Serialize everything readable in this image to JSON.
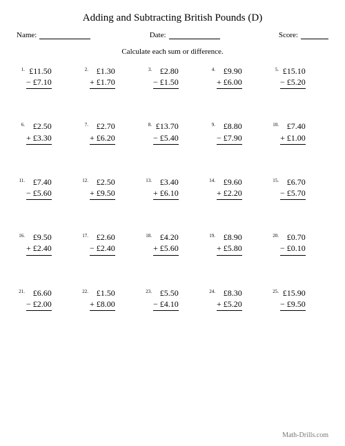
{
  "background_color": "#ffffff",
  "text_color": "#000000",
  "title": "Adding and Subtracting British Pounds (D)",
  "title_fontsize": 15,
  "header": {
    "name_label": "Name:",
    "date_label": "Date:",
    "score_label": "Score:",
    "fontsize": 11
  },
  "instruction": "Calculate each sum or difference.",
  "instruction_fontsize": 11,
  "grid": {
    "cols": 5,
    "rows": 5,
    "problem_fontsize": 12,
    "number_fontsize": 7
  },
  "problems": [
    {
      "n": "1.",
      "top": "£11.50",
      "op": "−",
      "bot": "£7.10"
    },
    {
      "n": "2.",
      "top": "£1.30",
      "op": "+",
      "bot": "£1.70"
    },
    {
      "n": "3.",
      "top": "£2.80",
      "op": "−",
      "bot": "£1.50"
    },
    {
      "n": "4.",
      "top": "£9.90",
      "op": "+",
      "bot": "£6.00"
    },
    {
      "n": "5.",
      "top": "£15.10",
      "op": "−",
      "bot": "£5.20"
    },
    {
      "n": "6.",
      "top": "£2.50",
      "op": "+",
      "bot": "£3.30"
    },
    {
      "n": "7.",
      "top": "£2.70",
      "op": "+",
      "bot": "£6.20"
    },
    {
      "n": "8.",
      "top": "£13.70",
      "op": "−",
      "bot": "£5.40"
    },
    {
      "n": "9.",
      "top": "£8.80",
      "op": "−",
      "bot": "£7.90"
    },
    {
      "n": "10.",
      "top": "£7.40",
      "op": "+",
      "bot": "£1.00"
    },
    {
      "n": "11.",
      "top": "£7.40",
      "op": "−",
      "bot": "£5.60"
    },
    {
      "n": "12.",
      "top": "£2.50",
      "op": "+",
      "bot": "£9.50"
    },
    {
      "n": "13.",
      "top": "£3.40",
      "op": "+",
      "bot": "£6.10"
    },
    {
      "n": "14.",
      "top": "£9.60",
      "op": "+",
      "bot": "£2.20"
    },
    {
      "n": "15.",
      "top": "£6.70",
      "op": "−",
      "bot": "£5.70"
    },
    {
      "n": "16.",
      "top": "£9.50",
      "op": "+",
      "bot": "£2.40"
    },
    {
      "n": "17.",
      "top": "£2.60",
      "op": "−",
      "bot": "£2.40"
    },
    {
      "n": "18.",
      "top": "£4.20",
      "op": "+",
      "bot": "£5.60"
    },
    {
      "n": "19.",
      "top": "£8.90",
      "op": "+",
      "bot": "£5.80"
    },
    {
      "n": "20.",
      "top": "£0.70",
      "op": "−",
      "bot": "£0.10"
    },
    {
      "n": "21.",
      "top": "£6.60",
      "op": "−",
      "bot": "£2.00"
    },
    {
      "n": "22.",
      "top": "£1.50",
      "op": "+",
      "bot": "£8.00"
    },
    {
      "n": "23.",
      "top": "£5.50",
      "op": "−",
      "bot": "£4.10"
    },
    {
      "n": "24.",
      "top": "£8.30",
      "op": "+",
      "bot": "£5.20"
    },
    {
      "n": "25.",
      "top": "£15.90",
      "op": "−",
      "bot": "£9.50"
    }
  ],
  "footer": "Math-Drills.com"
}
